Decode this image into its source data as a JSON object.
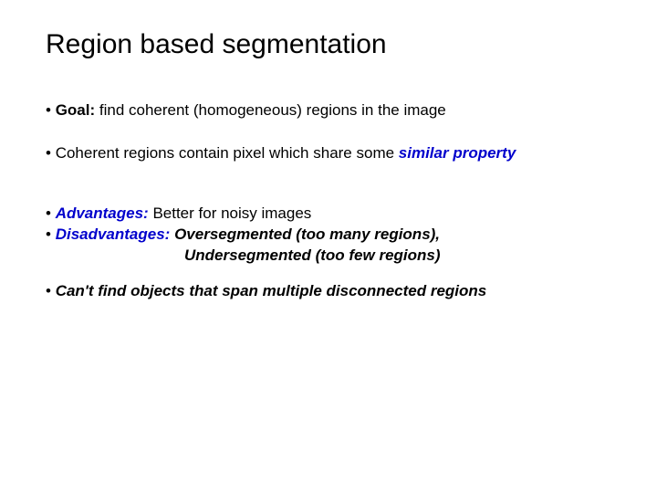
{
  "colors": {
    "background": "#ffffff",
    "text": "#000000",
    "accent_blue": "#0000cc"
  },
  "typography": {
    "title_fontsize": 30,
    "body_fontsize": 17,
    "font_family": "Arial"
  },
  "title": "Region based segmentation",
  "bullets": {
    "b1": {
      "lead": "Goal:",
      "rest": " find coherent (homogeneous) regions in the image"
    },
    "b2": {
      "pre": "Coherent regions contain pixel which share some ",
      "emph": "similar property"
    },
    "b3": {
      "lead": "Advantages:",
      "rest": " Better for noisy images"
    },
    "b4": {
      "lead": "Disadvantages:",
      "part1": " Oversegmented (too many regions),",
      "part2": "Undersegmented (too few regions)"
    },
    "b5": {
      "text": "Can't find objects that span multiple disconnected regions"
    }
  },
  "bullet_glyph": "• "
}
